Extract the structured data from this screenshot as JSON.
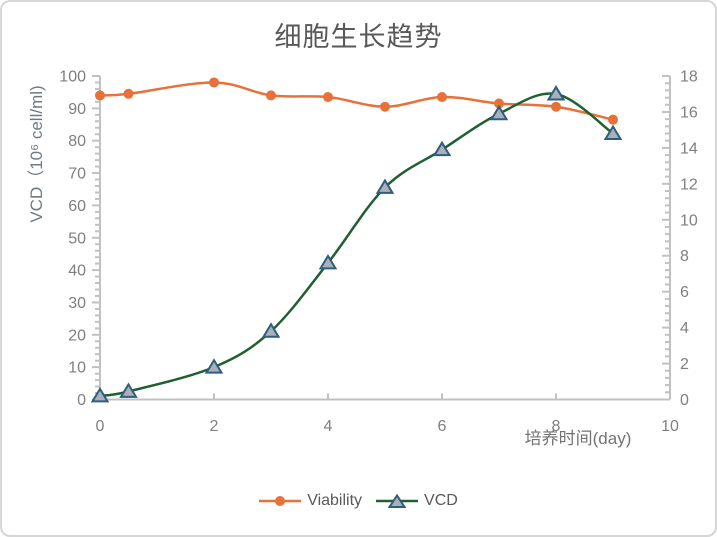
{
  "chart_data": {
    "type": "line",
    "title": "细胞生长趋势",
    "xlabel": "培养时间(day)",
    "ylabel": "VCD（10⁶ cell/ml)",
    "x": [
      0,
      0.5,
      2,
      3,
      4,
      5,
      6,
      7,
      8,
      9
    ],
    "series": [
      {
        "name": "Viability",
        "axis": "left",
        "marker": "circle",
        "color": "#E8713A",
        "values": [
          94,
          94.5,
          98,
          94,
          93.5,
          90.5,
          93.5,
          91.5,
          90.5,
          86.5
        ]
      },
      {
        "name": "VCD",
        "axis": "right",
        "marker": "triangle",
        "color": "#1F6032",
        "marker_fill": "#A9B0B9",
        "marker_stroke": "#2E5E7E",
        "values": [
          0.2,
          0.45,
          1.8,
          3.8,
          7.6,
          11.8,
          13.9,
          15.9,
          17,
          14.8
        ]
      }
    ],
    "axes": {
      "x": {
        "min": 0,
        "max": 10,
        "major_step": 2
      },
      "y_left": {
        "min": 0,
        "max": 100,
        "major_step": 10,
        "minor_step": 2
      },
      "y_right": {
        "min": 0,
        "max": 18,
        "major_step": 2,
        "minor_step": 0.4
      }
    },
    "legend_position": "bottom",
    "grid": false,
    "smooth_lines": true
  },
  "styles": {
    "background": "#FFFFFF",
    "border_color": "#D6D6D6",
    "axis_color": "#C1C1C1",
    "tick_label_color": "#7F7F7F",
    "title_color": "#595959",
    "y_axis_title_color": "#6F7982",
    "x_axis_title_color": "#737373",
    "legend_text_color": "#595959"
  }
}
